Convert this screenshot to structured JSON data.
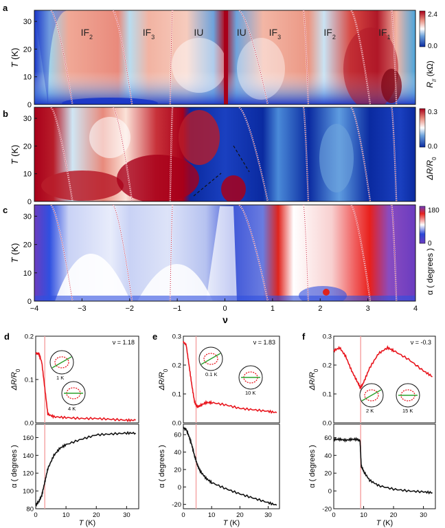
{
  "panel_labels": [
    "a",
    "b",
    "c",
    "d",
    "e",
    "f"
  ],
  "colors": {
    "red": "#c8102e",
    "darkred": "#a8001a",
    "blue": "#1a36c8",
    "deepblue": "#0a2aa0",
    "white": "#ffffff",
    "purple": "#6a3cc0",
    "trace_red": "#e8141c",
    "trace_black": "#111111",
    "marker_line": "#f5a6a6"
  },
  "chart_data": [
    {
      "id": "a",
      "type": "heatmap",
      "ylabel": "T (K)",
      "ylabel_italic": "T",
      "ylabel_unit": "(K)",
      "yticks": [
        "0",
        "10",
        "20",
        "30"
      ],
      "ylim": [
        0,
        34
      ],
      "xlim": [
        -4,
        4
      ],
      "colorbar": {
        "label": "R",
        "label_sub": "//",
        "label_unit": "(kΩ)",
        "ticks": [
          "0.0",
          "2.4"
        ],
        "range": [
          0,
          2.4
        ]
      },
      "region_labels": [
        {
          "text": "IF",
          "sub": "2",
          "nu": -2.9
        },
        {
          "text": "IF",
          "sub": "3",
          "nu": -1.6
        },
        {
          "text": "IU",
          "sub": "",
          "nu": -0.55
        },
        {
          "text": "IU",
          "sub": "",
          "nu": 0.35
        },
        {
          "text": "IF",
          "sub": "3",
          "nu": 1.05
        },
        {
          "text": "IF",
          "sub": "2",
          "nu": 2.2
        },
        {
          "text": "IF",
          "sub": "1",
          "nu": 3.35
        }
      ]
    },
    {
      "id": "b",
      "type": "heatmap",
      "ylabel": "T (K)",
      "ylabel_italic": "T",
      "ylabel_unit": "(K)",
      "yticks": [
        "0",
        "10",
        "20",
        "30"
      ],
      "ylim": [
        0,
        34
      ],
      "xlim": [
        -4,
        4
      ],
      "colorbar": {
        "label": "ΔR/R",
        "label_sub": "0",
        "ticks": [
          "0.0",
          "0.3"
        ],
        "range": [
          0,
          0.3
        ]
      }
    },
    {
      "id": "c",
      "type": "heatmap",
      "ylabel": "T (K)",
      "ylabel_italic": "T",
      "ylabel_unit": "(K)",
      "yticks": [
        "0",
        "10",
        "20",
        "30"
      ],
      "ylim": [
        0,
        34
      ],
      "xlim": [
        -4,
        4
      ],
      "xlabel": "ν",
      "xticks": [
        "−4",
        "−3",
        "−2",
        "−1",
        "0",
        "1",
        "2",
        "3",
        "4"
      ],
      "colorbar": {
        "label": "α ( degrees )",
        "ticks": [
          "0",
          "180"
        ],
        "range": [
          0,
          180
        ]
      }
    },
    {
      "id": "d",
      "type": "line",
      "nu_label": "ν = 1.18",
      "xlim": [
        0,
        34
      ],
      "marker_T": 3,
      "top": {
        "ylabel": "ΔR/R",
        "ylabel_sub": "0",
        "ylim": [
          0,
          0.2
        ],
        "yticks": [
          "0.0",
          "0.1",
          "0.2"
        ],
        "x": [
          0,
          1,
          2,
          3,
          4,
          6,
          10,
          15,
          20,
          25,
          30,
          33
        ],
        "y": [
          0.16,
          0.16,
          0.14,
          0.08,
          0.02,
          0.014,
          0.012,
          0.01,
          0.01,
          0.008,
          0.006,
          0.006
        ],
        "insets": [
          "1 K",
          "4 K"
        ]
      },
      "bottom": {
        "ylabel": "α ( degrees )",
        "ylim": [
          80,
          175
        ],
        "yticks": [
          "80",
          "100",
          "120",
          "140",
          "160"
        ],
        "x": [
          0,
          1,
          2,
          3,
          4,
          6,
          8,
          10,
          15,
          20,
          25,
          30,
          33
        ],
        "y": [
          84,
          88,
          95,
          110,
          125,
          140,
          148,
          152,
          158,
          163,
          164,
          165,
          165
        ]
      },
      "xlabel": "T (K)",
      "xticks": [
        "0",
        "10",
        "20",
        "30"
      ]
    },
    {
      "id": "e",
      "type": "line",
      "nu_label": "ν = 1.83",
      "xlim": [
        0,
        34
      ],
      "marker_T": 4.5,
      "top": {
        "ylabel": "ΔR/R",
        "ylabel_sub": "0",
        "ylim": [
          0,
          0.3
        ],
        "yticks": [
          "0.0",
          "0.1",
          "0.2",
          "0.3"
        ],
        "x": [
          0,
          1,
          2,
          3,
          4,
          5,
          6,
          8,
          10,
          15,
          20,
          25,
          30,
          33
        ],
        "y": [
          0.28,
          0.27,
          0.2,
          0.13,
          0.07,
          0.055,
          0.06,
          0.07,
          0.07,
          0.062,
          0.05,
          0.045,
          0.04,
          0.035
        ],
        "insets": [
          "0.1 K",
          "10 K"
        ]
      },
      "bottom": {
        "ylabel": "α ( degrees )",
        "ylim": [
          -25,
          72
        ],
        "yticks": [
          "-20",
          "0",
          "20",
          "40",
          "60"
        ],
        "x": [
          0,
          1,
          2,
          3,
          4,
          5,
          6,
          8,
          10,
          15,
          20,
          25,
          30,
          33
        ],
        "y": [
          68,
          66,
          58,
          48,
          35,
          25,
          18,
          10,
          5,
          -2,
          -8,
          -13,
          -18,
          -21
        ]
      },
      "xlabel": "T (K)",
      "xticks": [
        "0",
        "10",
        "20",
        "30"
      ]
    },
    {
      "id": "f",
      "type": "line",
      "nu_label": "ν = -0.3",
      "xlim": [
        0,
        34
      ],
      "marker_T": 9,
      "top": {
        "ylabel": "ΔR/R",
        "ylabel_sub": "0",
        "ylim": [
          0,
          0.3
        ],
        "yticks": [
          "0.0",
          "0.1",
          "0.2",
          "0.3"
        ],
        "x": [
          0,
          2,
          4,
          6,
          8,
          9,
          10,
          12,
          15,
          18,
          20,
          25,
          30,
          33
        ],
        "y": [
          0.25,
          0.26,
          0.23,
          0.18,
          0.14,
          0.12,
          0.14,
          0.19,
          0.24,
          0.26,
          0.25,
          0.22,
          0.18,
          0.16
        ],
        "insets": [
          "2 K",
          "15 K"
        ]
      },
      "bottom": {
        "ylabel": "α ( degrees )",
        "ylim": [
          -20,
          75
        ],
        "yticks": [
          "-20",
          "0",
          "20",
          "40",
          "60"
        ],
        "x": [
          0,
          2,
          4,
          6,
          8,
          8.8,
          9.2,
          10,
          12,
          15,
          20,
          25,
          30,
          33
        ],
        "y": [
          58,
          58,
          57,
          58,
          58,
          56,
          28,
          22,
          12,
          6,
          2,
          0,
          -1,
          -2
        ]
      },
      "xlabel": "T (K)",
      "xticks": [
        "0",
        "10",
        "20",
        "30"
      ]
    }
  ]
}
